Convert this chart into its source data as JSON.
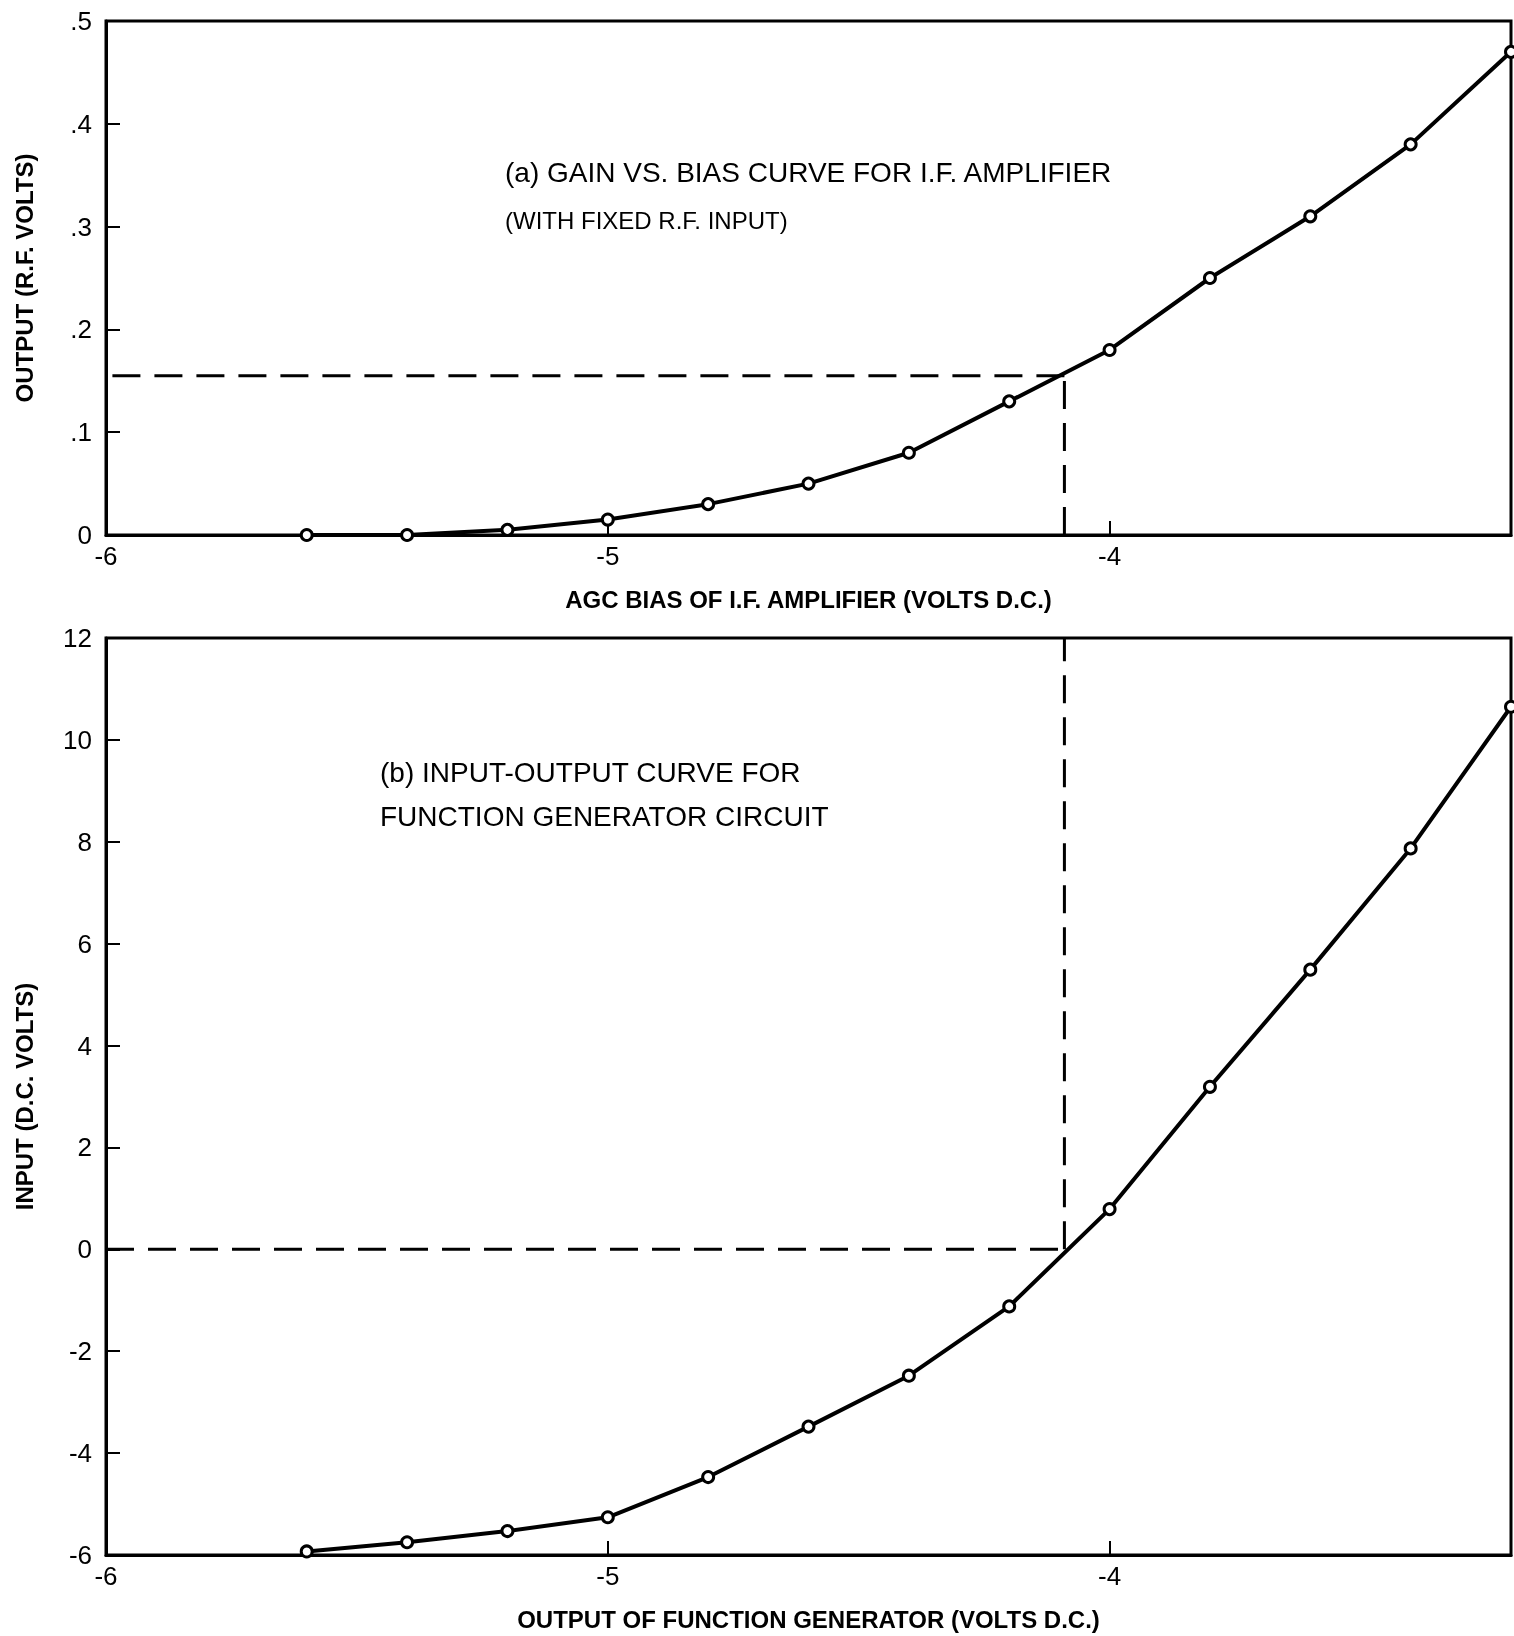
{
  "chart_data": [
    {
      "type": "line",
      "title": "(a) GAIN VS. BIAS CURVE FOR I.F. AMPLIFIER",
      "subtitle": "(WITH FIXED R.F. INPUT)",
      "xlabel": "AGC BIAS OF I.F. AMPLIFIER (VOLTS D.C.)",
      "ylabel": "OUTPUT (R.F. VOLTS)",
      "x": [
        -5.6,
        -5.4,
        -5.2,
        -5.0,
        -4.8,
        -4.6,
        -4.4,
        -4.2,
        -4.0,
        -3.8,
        -3.6,
        -3.4,
        -3.2
      ],
      "series": [
        {
          "color": "#000000",
          "values": [
            0,
            0,
            0.005,
            0.015,
            0.03,
            0.05,
            0.08,
            0.13,
            0.18,
            0.25,
            0.31,
            0.38,
            0.47
          ]
        }
      ],
      "xlim": [
        -6,
        -3.2
      ],
      "xticks": [
        -6,
        -5,
        -4
      ],
      "ylim": [
        0,
        0.5
      ],
      "yticks": [
        0,
        {
          "value": 0.1,
          "label": ".1"
        },
        {
          "value": 0.2,
          "label": ".2"
        },
        {
          "value": 0.3,
          "label": ".3"
        },
        {
          "value": 0.4,
          "label": ".4"
        },
        {
          "value": 0.5,
          "label": ".5"
        }
      ],
      "ref_lines": [
        {
          "axis": "y",
          "value": 0.155,
          "color": "#000000",
          "line_style": "dashed"
        },
        {
          "axis": "x",
          "value": -4.09,
          "color": "#000000",
          "line_style": "dashed"
        }
      ],
      "grid": false,
      "marker": "circle",
      "line_style": "solid"
    },
    {
      "type": "line",
      "title": "(b) INPUT-OUTPUT CURVE FOR FUNCTION GENERATOR CIRCUIT",
      "xlabel": "OUTPUT OF FUNCTION GENERATOR (VOLTS D.C.)",
      "ylabel": "INPUT (D.C. VOLTS)",
      "x": [
        -5.6,
        -5.4,
        -5.2,
        -5.0,
        -4.8,
        -4.6,
        -4.4,
        -4.2,
        -4.0,
        -3.8,
        -3.6,
        -3.4,
        -3.2
      ],
      "series": [
        {
          "color": "#000000",
          "values": [
            -5.93,
            -5.75,
            -5.53,
            -5.26,
            -4.47,
            -3.48,
            -2.48,
            -1.12,
            0.79,
            3.19,
            5.49,
            7.87,
            10.65
          ]
        }
      ],
      "xlim": [
        -6,
        -3.2
      ],
      "xticks": [
        -6,
        -5,
        -4
      ],
      "ylim": [
        -6,
        12
      ],
      "yticks": [
        -6,
        -4,
        -2,
        0,
        2,
        4,
        6,
        8,
        10,
        12
      ],
      "ref_lines": [
        {
          "axis": "y",
          "value": 0,
          "color": "#000000",
          "line_style": "dashed"
        },
        {
          "axis": "x",
          "value": -4.09,
          "color": "#000000",
          "line_style": "dashed"
        }
      ],
      "grid": false,
      "marker": "circle",
      "line_style": "solid"
    }
  ]
}
